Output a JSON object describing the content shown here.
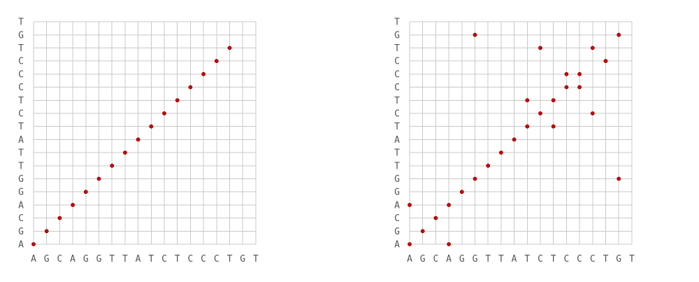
{
  "colors": {
    "grid": "#c8c8c8",
    "dot": "#cc0000",
    "dot_stroke": "#880000",
    "label": "#555555",
    "background": "#ffffff"
  },
  "chart_data": [
    {
      "type": "scatter",
      "grid": true,
      "x_sequence": [
        "A",
        "G",
        "C",
        "A",
        "G",
        "G",
        "T",
        "T",
        "A",
        "T",
        "C",
        "T",
        "C",
        "C",
        "C",
        "T",
        "G",
        "T"
      ],
      "y_sequence": [
        "A",
        "G",
        "C",
        "A",
        "G",
        "G",
        "T",
        "T",
        "A",
        "T",
        "C",
        "T",
        "C",
        "C",
        "C",
        "T",
        "G",
        "T"
      ],
      "points": [
        [
          0,
          0
        ],
        [
          1,
          1
        ],
        [
          2,
          2
        ],
        [
          3,
          3
        ],
        [
          4,
          4
        ],
        [
          5,
          5
        ],
        [
          6,
          6
        ],
        [
          7,
          7
        ],
        [
          8,
          8
        ],
        [
          9,
          9
        ],
        [
          10,
          10
        ],
        [
          11,
          11
        ],
        [
          12,
          12
        ],
        [
          13,
          13
        ],
        [
          14,
          14
        ],
        [
          15,
          15
        ]
      ]
    },
    {
      "type": "scatter",
      "grid": true,
      "x_sequence": [
        "A",
        "G",
        "C",
        "A",
        "G",
        "G",
        "T",
        "T",
        "A",
        "T",
        "C",
        "T",
        "C",
        "C",
        "C",
        "T",
        "G",
        "T"
      ],
      "y_sequence": [
        "A",
        "G",
        "C",
        "A",
        "G",
        "G",
        "T",
        "T",
        "A",
        "T",
        "C",
        "T",
        "C",
        "C",
        "C",
        "T",
        "G",
        "T"
      ],
      "points": [
        [
          0,
          0
        ],
        [
          0,
          3
        ],
        [
          1,
          1
        ],
        [
          2,
          2
        ],
        [
          3,
          0
        ],
        [
          3,
          3
        ],
        [
          4,
          4
        ],
        [
          5,
          5
        ],
        [
          5,
          16
        ],
        [
          6,
          6
        ],
        [
          7,
          7
        ],
        [
          8,
          8
        ],
        [
          9,
          9
        ],
        [
          9,
          11
        ],
        [
          10,
          10
        ],
        [
          10,
          15
        ],
        [
          11,
          9
        ],
        [
          11,
          11
        ],
        [
          12,
          12
        ],
        [
          12,
          13
        ],
        [
          13,
          12
        ],
        [
          13,
          13
        ],
        [
          14,
          10
        ],
        [
          14,
          15
        ],
        [
          15,
          14
        ],
        [
          16,
          5
        ],
        [
          16,
          16
        ]
      ]
    }
  ]
}
